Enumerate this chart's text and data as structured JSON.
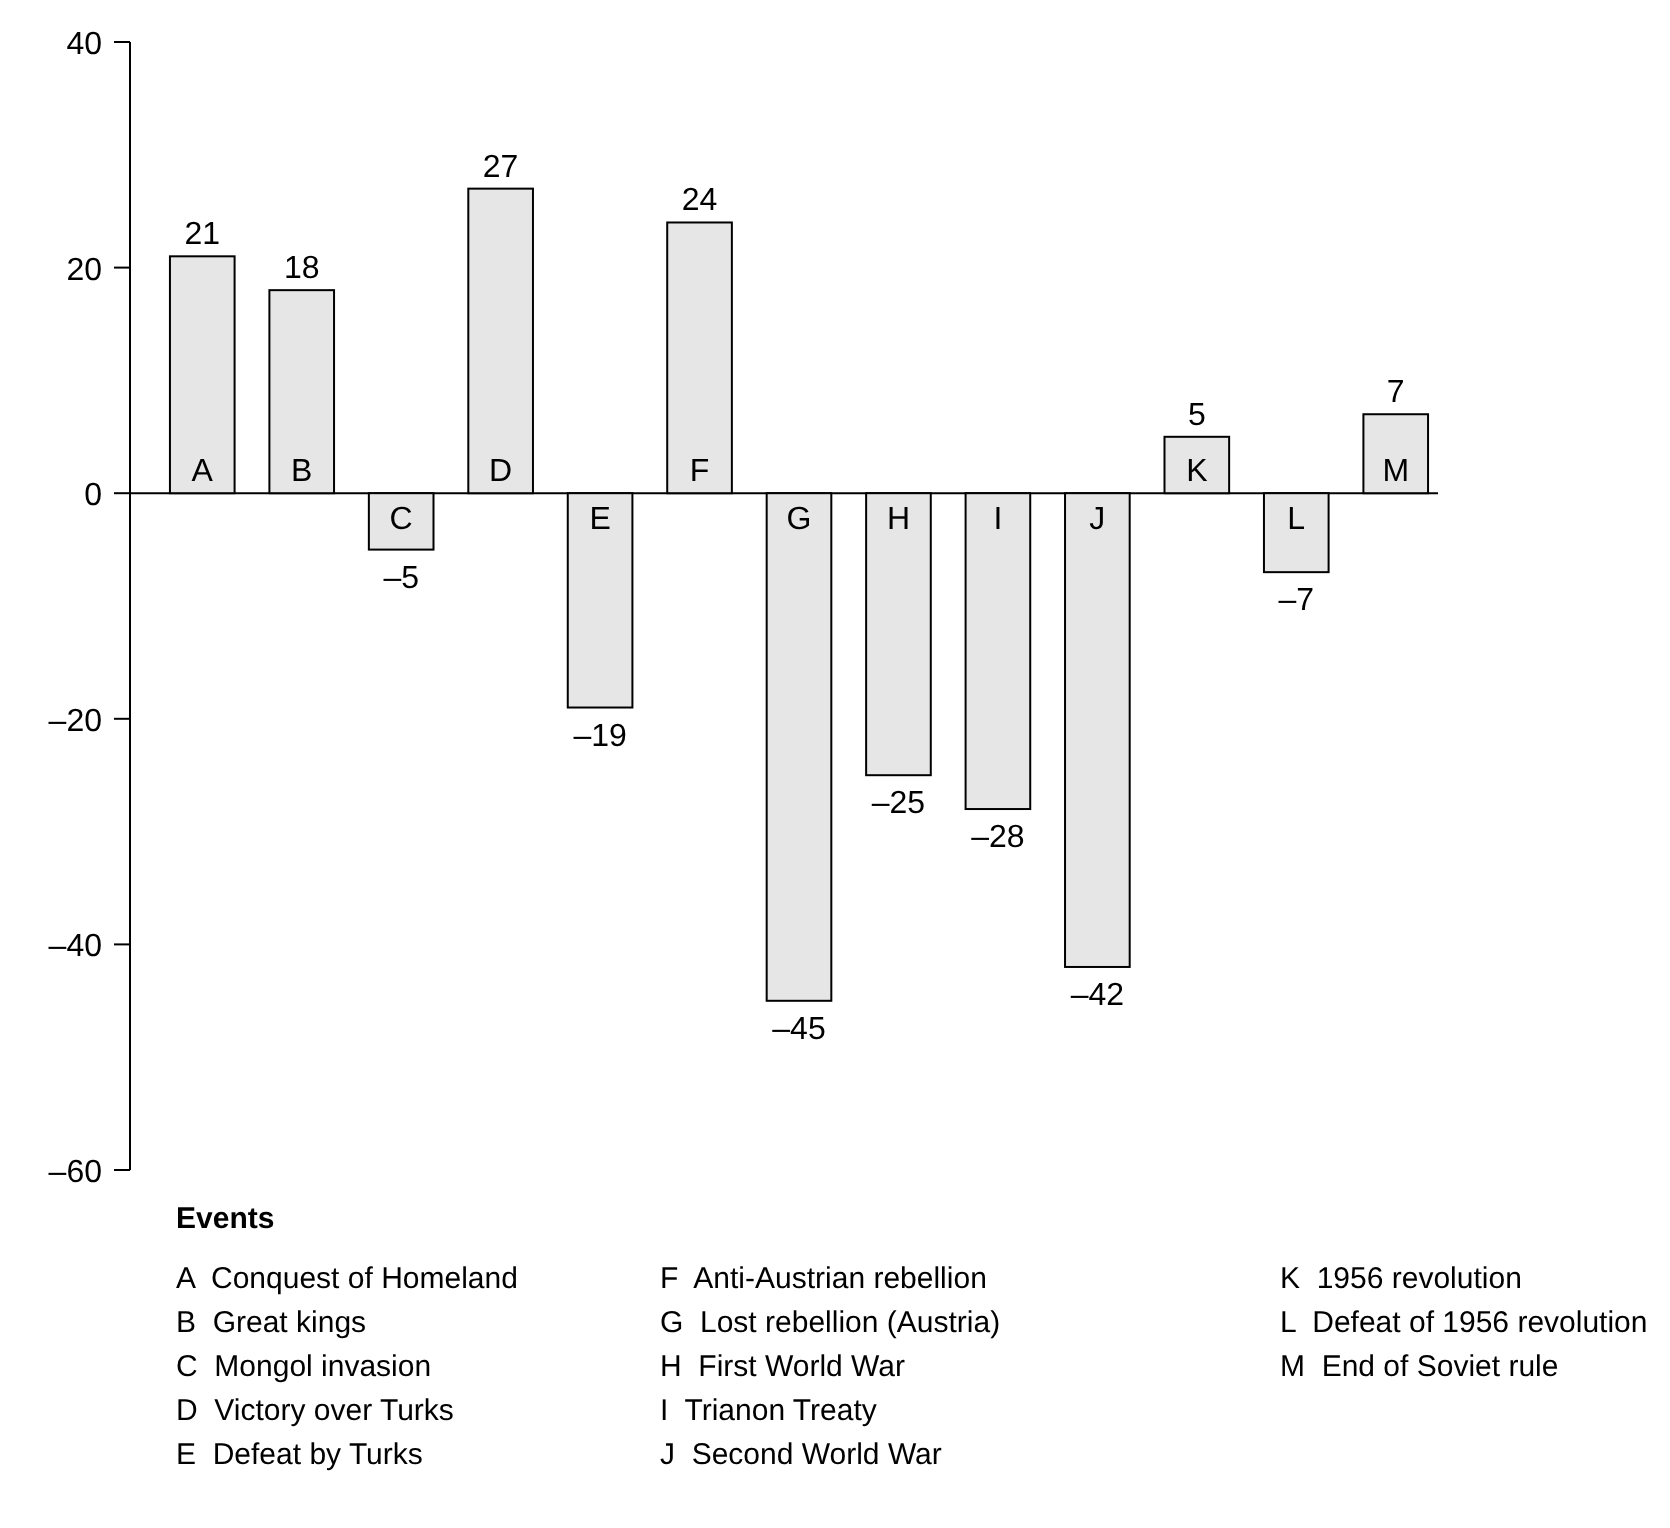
{
  "chart_data": {
    "type": "bar",
    "categories": [
      "A",
      "B",
      "C",
      "D",
      "E",
      "F",
      "G",
      "H",
      "I",
      "J",
      "K",
      "L",
      "M"
    ],
    "values": [
      21,
      18,
      -5,
      27,
      -19,
      24,
      -45,
      -25,
      -28,
      -42,
      5,
      -7,
      7
    ],
    "value_labels": [
      "21",
      "18",
      "–5",
      "27",
      "–19",
      "24",
      "–45",
      "–25",
      "–28",
      "–42",
      "5",
      "–7",
      "7"
    ],
    "color": "#e6e6e6",
    "ylim": [
      -60,
      40
    ],
    "yticks": [
      {
        "value": -60,
        "label": "–60"
      },
      {
        "value": -40,
        "label": "–40"
      },
      {
        "value": -20,
        "label": "–20"
      },
      0,
      20,
      40
    ],
    "grid": false,
    "annotations": [
      "Events",
      "A  Conquest of Homeland",
      "B  Great kings",
      "C  Mongol invasion",
      "D  Victory over Turks",
      "E  Defeat by Turks",
      "F  Anti-Austrian rebellion",
      "G  Lost rebellion (Austria)",
      "H  First World War",
      "I  Trianon Treaty",
      "J  Second World War",
      "K  1956 revolution",
      "L  Defeat of 1956 revolution",
      "M  End of Soviet rule"
    ]
  }
}
